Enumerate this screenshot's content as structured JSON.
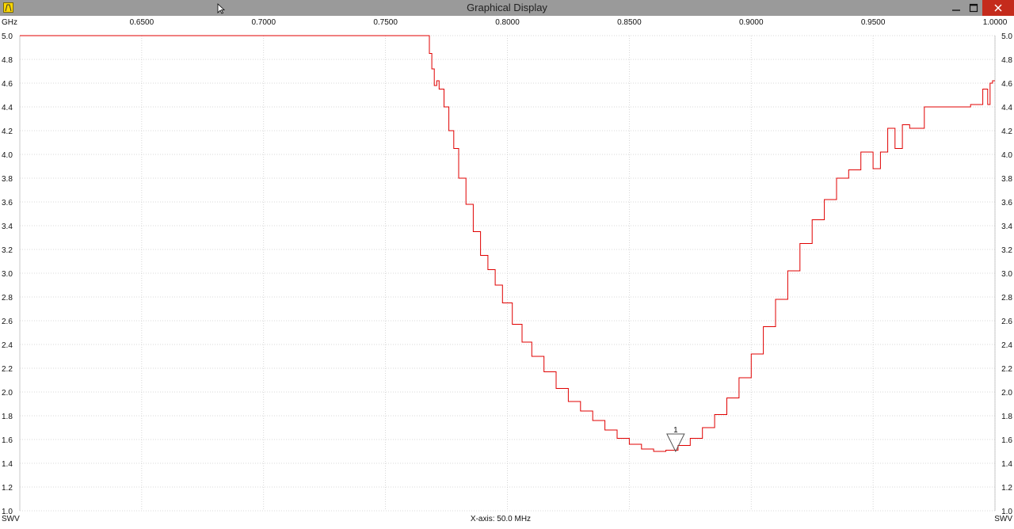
{
  "window": {
    "title": "Graphical Display",
    "minimize_icon": "minimize-icon",
    "maximize_icon": "maximize-icon",
    "close_icon": "close-icon",
    "app_icon": "antenna-analyzer-icon"
  },
  "footer": {
    "left_unit": "SWV",
    "right_unit": "SWV",
    "xaxis_info": "X-axis: 50.0 MHz"
  },
  "colors": {
    "trace": "#e00000",
    "grid": "#cccccc",
    "titlebar": "#9a9a9a"
  },
  "chart_data": {
    "type": "line",
    "x_unit_label": "GHz",
    "x_ticks": [
      "0.6500",
      "0.7000",
      "0.7500",
      "0.8000",
      "0.8500",
      "0.9000",
      "0.9500",
      "1.0000"
    ],
    "y_ticks": [
      "1.0",
      "1.2",
      "1.4",
      "1.6",
      "1.8",
      "2.0",
      "2.2",
      "2.4",
      "2.6",
      "2.8",
      "3.0",
      "3.2",
      "3.4",
      "3.6",
      "3.8",
      "4.0",
      "4.2",
      "4.4",
      "4.6",
      "4.8",
      "5.0"
    ],
    "xlim": [
      0.6,
      1.0
    ],
    "ylim": [
      1.0,
      5.0
    ],
    "grid": true,
    "series": [
      {
        "x": [
          0.6,
          0.65,
          0.7,
          0.75,
          0.767,
          0.768,
          0.769,
          0.77,
          0.771,
          0.772,
          0.774,
          0.776,
          0.778,
          0.78,
          0.783,
          0.786,
          0.789,
          0.792,
          0.795,
          0.798,
          0.802,
          0.806,
          0.81,
          0.815,
          0.82,
          0.825,
          0.83,
          0.835,
          0.84,
          0.845,
          0.85,
          0.855,
          0.86,
          0.865,
          0.87,
          0.875,
          0.88,
          0.885,
          0.89,
          0.895,
          0.9,
          0.905,
          0.91,
          0.915,
          0.92,
          0.925,
          0.93,
          0.935,
          0.94,
          0.945,
          0.95,
          0.953,
          0.956,
          0.959,
          0.962,
          0.965,
          0.967,
          0.969,
          0.971,
          0.973,
          0.975,
          0.977,
          0.98,
          0.985,
          0.99,
          0.995,
          0.997,
          0.998,
          0.999,
          1.0
        ],
        "y": [
          5.0,
          5.0,
          5.0,
          5.0,
          5.0,
          4.85,
          4.72,
          4.58,
          4.62,
          4.55,
          4.4,
          4.2,
          4.05,
          3.8,
          3.58,
          3.35,
          3.15,
          3.03,
          2.9,
          2.75,
          2.57,
          2.42,
          2.3,
          2.17,
          2.03,
          1.92,
          1.84,
          1.76,
          1.68,
          1.61,
          1.56,
          1.52,
          1.5,
          1.51,
          1.55,
          1.61,
          1.7,
          1.81,
          1.95,
          2.12,
          2.32,
          2.55,
          2.78,
          3.02,
          3.25,
          3.45,
          3.62,
          3.8,
          3.87,
          4.02,
          3.88,
          4.02,
          4.22,
          4.05,
          4.25,
          4.22,
          4.22,
          4.22,
          4.4,
          4.4,
          4.4,
          4.4,
          4.4,
          4.4,
          4.42,
          4.55,
          4.42,
          4.6,
          4.62,
          4.62
        ]
      }
    ],
    "marker": {
      "label": "1",
      "x": 0.869,
      "y": 1.5
    }
  }
}
